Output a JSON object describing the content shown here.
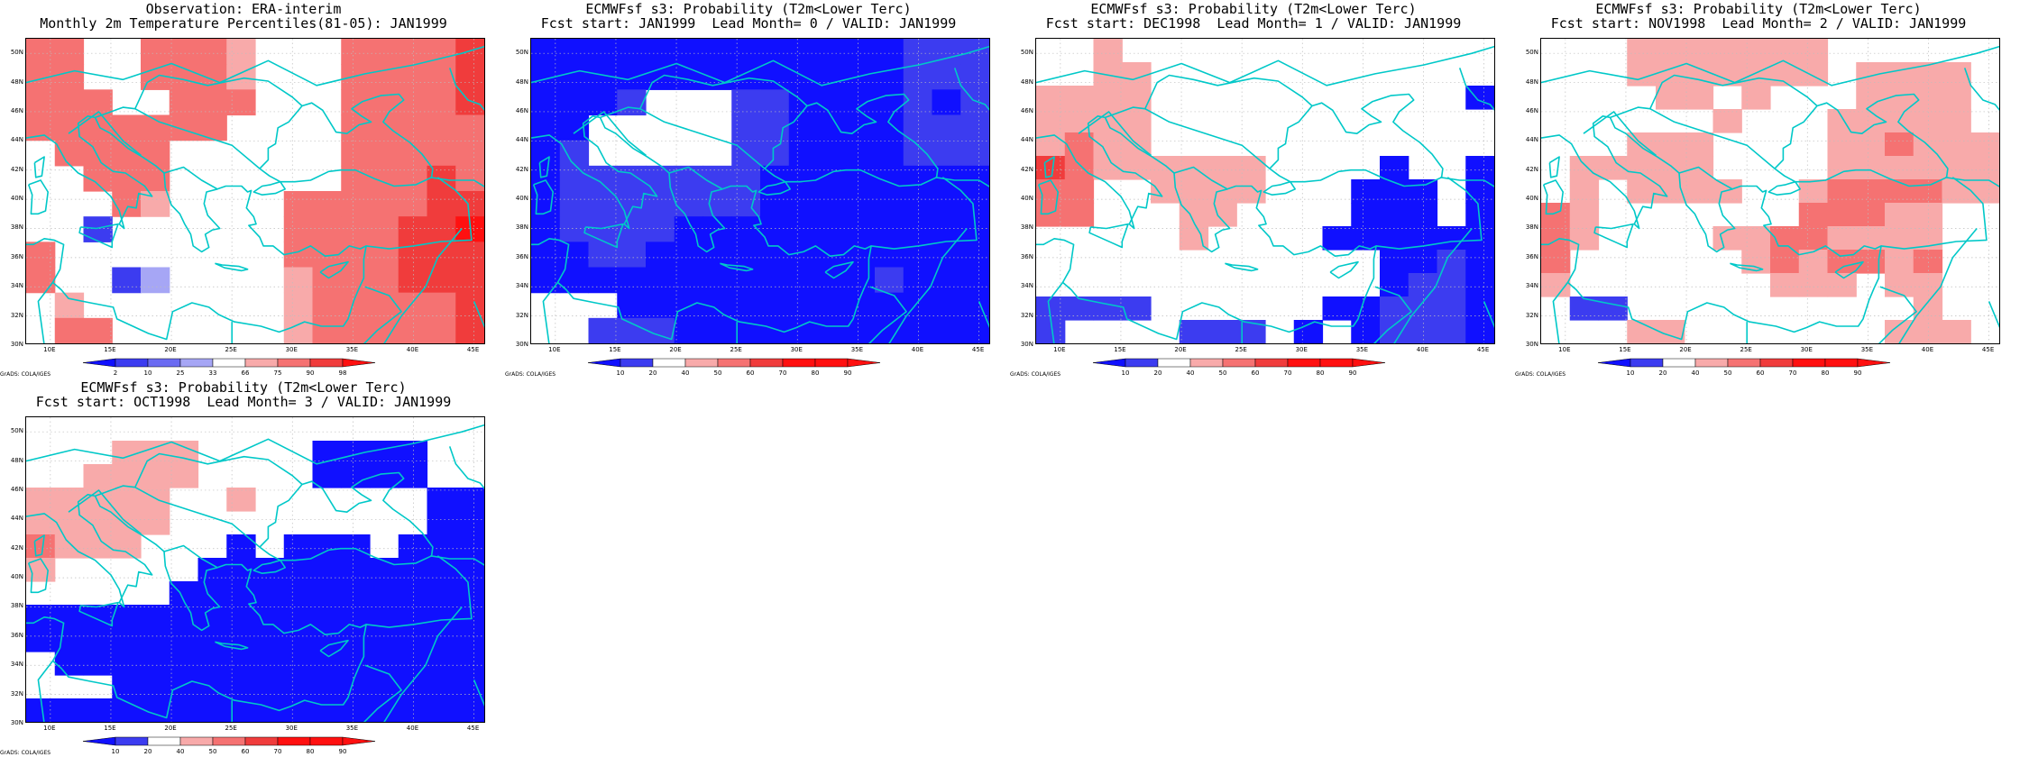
{
  "ylabels": [
    "50N",
    "48N",
    "46N",
    "44N",
    "42N",
    "40N",
    "38N",
    "36N",
    "34N",
    "32N",
    "30N"
  ],
  "xlabels": [
    "10E",
    "15E",
    "20E",
    "25E",
    "30E",
    "35E",
    "40E",
    "45E"
  ],
  "credit": "GrADS: COLA/IGES",
  "colors": {
    "coast": "#00c8c8",
    "grid": "#bdbdbd",
    "levels": {
      "b1": "#1010ff",
      "b2": "#3c3cf0",
      "b3": "#6b6bf2",
      "b4": "#a6a6f5",
      "w": "#ffffff",
      "r1": "#f8aaaa",
      "r2": "#f57272",
      "r3": "#f03c3c",
      "r4": "#ff1010"
    }
  },
  "colorbars": {
    "obs": {
      "labels": [
        "2",
        "10",
        "25",
        "33",
        "66",
        "75",
        "90",
        "98"
      ],
      "colors": [
        "b1",
        "b2",
        "b3",
        "b4",
        "w",
        "r1",
        "r2",
        "r3",
        "r4"
      ]
    },
    "prob": {
      "labels": [
        "10",
        "20",
        "40",
        "50",
        "60",
        "70",
        "80",
        "90"
      ],
      "colors": [
        "b1",
        "b2",
        "w",
        "r1",
        "r2",
        "r3",
        "r4",
        "r4",
        "r4"
      ]
    }
  },
  "panels": [
    {
      "title1": "Observation: ERA-interim",
      "title2": "Monthly 2m Temperature Percentiles(81-05): JAN1999",
      "colorbar": "obs",
      "grid": [
        "r2 r2 w w r2 r2 r2 r1 w w w r2 r2 r2 r2 r3",
        "r2 r2 w w r2 r2 r2 r1 w w w r2 r2 r2 r2 r3",
        "r2 r2 r2 w w r2 r2 r2 w w w r2 r2 r2 r2 r3",
        "r2 r2 r2 r2 r2 r2 r2 w w w w r2 r2 r2 r2 r2",
        "w r2 r2 r2 r2 w w w w w w r2 r2 r2 r2 r2",
        "w w r2 r2 r2 w w w w w w r2 r2 r2 r3 r2",
        "w w w r2 r1 w w w w r2 r2 r2 r2 r2 r3 r3",
        "w w b2 w w w w w w r2 r2 r2 r2 r3 r3 r4",
        "r2 w w w w w w w w r2 r2 r2 r2 r3 r3 r3",
        "r2 w w b2 b4 w w w w r1 r2 r2 r2 r3 r3 r3",
        "w r1 w w w w w w w r1 r2 r2 r2 r2 r2 r3",
        "w r2 r2 w w w w w w r1 r2 r2 r2 r2 r2 r3"
      ]
    },
    {
      "title1": "ECMWFsf s3: Probability (T2m<Lower Terc)",
      "title2": "Fcst start: JAN1999  Lead Month= 0 / VALID: JAN1999",
      "colorbar": "prob",
      "grid": [
        "b1 b1 b1 b1 b1 b1 b1 b1 b1 b1 b1 b1 b1 b2 b2 b2",
        "b1 b1 b1 b1 b1 b1 b1 b1 b1 b1 b1 b1 b1 b2 b2 b2",
        "b1 b1 b1 b2 w w w b2 b2 b1 b1 b1 b1 b2 b1 b2",
        "b1 b1 w w w w w b2 b2 b1 b1 b1 b1 b2 b2 b2",
        "b1 b2 w w w w w b2 b2 b1 b1 b1 b1 b2 b2 b2",
        "b1 b2 b2 b2 b2 b2 b2 b2 b1 b1 b1 b1 b1 b1 b1 b1",
        "b1 b2 b2 b2 b2 b2 b2 b2 b1 b1 b1 b1 b1 b1 b1 b1",
        "b1 b2 b2 b2 b2 b1 b1 b1 b1 b1 b1 b1 b1 b1 b1 b1",
        "b1 b1 b2 b2 b1 b1 b1 b1 b1 b1 b1 b1 b1 b1 b1 b1",
        "b1 b1 b1 b1 b1 b1 b1 b1 b1 b1 b1 b1 b2 b1 b1 b1",
        "w w w b1 b1 b1 b1 b1 b1 b1 b1 b1 b1 b1 b1 b1",
        "w w b2 b2 b2 b1 b1 b1 b1 b1 b1 b1 b1 b1 b1 b1"
      ]
    },
    {
      "title1": "ECMWFsf s3: Probability (T2m<Lower Terc)",
      "title2": "Fcst start: DEC1998  Lead Month= 1 / VALID: JAN1999",
      "colorbar": "prob",
      "grid": [
        "w w r1 w w w w w w w w w w w w w",
        "w w r1 r1 w w w w w w w w w w w w",
        "r1 r1 r1 r1 w w w w w w w w w w w b1",
        "r1 r1 r1 r1 w w w w w w w w w w w w",
        "r1 r2 r1 r1 w w w w w w w w w w w w",
        "r3 r2 r1 r1 r1 r1 r1 r1 w w w w b1 w w b1",
        "r2 r2 w w r1 r1 r1 r1 w w w b1 b1 b1 w b1",
        "r2 r2 w w w r1 r1 w w w w b1 b1 b1 w b1",
        "w w w w w r1 w w w w b1 b1 b1 b1 b1 b1",
        "w w w w w w w w w w w w b1 b1 b2 b1",
        "w w w w w w w w w w w w b1 b2 b2 b1",
        "b2 b2 b2 b2 w w w w w w b1 b1 b2 b2 b2 b1",
        "b2 w w w w b2 b2 b2 w b1 w b1 b2 b2 b2 b1"
      ]
    },
    {
      "title1": "ECMWFsf s3: Probability (T2m<Lower Terc)",
      "title2": "Fcst start: NOV1998  Lead Month= 2 / VALID: JAN1999",
      "colorbar": "prob",
      "grid": [
        "w w w r1 r1 r1 r1 r1 r1 r1 w w w w w w",
        "w w w r1 r1 r1 r1 r1 r1 r1 w r1 r1 r1 r1 w",
        "w w w w r1 r1 w r1 w w w r1 r1 r1 r1 w",
        "w w w w w w r1 w w w r1 r1 r1 r1 r1 w",
        "w w w r1 r1 r1 w w w w r1 r1 r2 r1 r1 r1",
        "w r1 r1 r1 r1 r1 w w w w r1 r1 r1 r1 r1 r1",
        "w r1 w r1 r1 r1 r1 w w r1 r2 r2 r2 r2 r1 r1",
        "r2 r1 w w w w w w w r2 r2 r2 r1 r1 w w",
        "r2 r1 w w w w r1 r1 r2 r2 r1 r1 r1 r1 w w",
        "r2 w w w w w w r1 r2 r1 r2 r2 r1 r2 w w",
        "r1 w w w w w w w r1 r1 r1 w r1 r1 w w",
        "w b2 b2 w w w w w w w w w w r1 w w",
        "w w w r1 r1 w w w w w w w r1 r1 r1 w"
      ]
    },
    {
      "title1": "ECMWFsf s3: Probability (T2m<Lower Terc)",
      "title2": "Fcst start: OCT1998  Lead Month= 3 / VALID: JAN1999",
      "colorbar": "prob",
      "grid": [
        "w w w w w w w w w w w w w w w w",
        "w w w r1 r1 r1 w w w w b1 b1 b1 b1 w w",
        "w w r1 r1 r1 r1 w w w w b1 b1 b1 b1 w w",
        "r1 r1 r1 r1 r1 w w r1 w w w w w w b1 b1",
        "r1 r1 r1 r1 r1 w w w w w w w w w b1 b1",
        "r2 r1 r1 r1 w w w b1 w b1 b1 b1 w b1 b1 b1",
        "r1 w w w w w b1 b1 b1 b1 b1 b1 b1 b1 b1 b1",
        "w w w w w b1 b1 b1 b1 b1 b1 b1 b1 b1 b1 b1",
        "b1 b1 b1 b1 b1 b1 b1 b1 b1 b1 b1 b1 b1 b1 b1 b1",
        "b1 b1 b1 b1 b1 b1 b1 b1 b1 b1 b1 b1 b1 b1 b1 b1",
        "w b1 b1 b1 b1 b1 b1 b1 b1 b1 b1 b1 b1 b1 b1 b1",
        "w w w b1 b1 b1 b1 b1 b1 b1 b1 b1 b1 b1 b1 b1",
        "b1 b1 b1 b1 b1 b1 b1 b1 b1 b1 b1 b1 b1 b1 b1 b1"
      ]
    }
  ]
}
